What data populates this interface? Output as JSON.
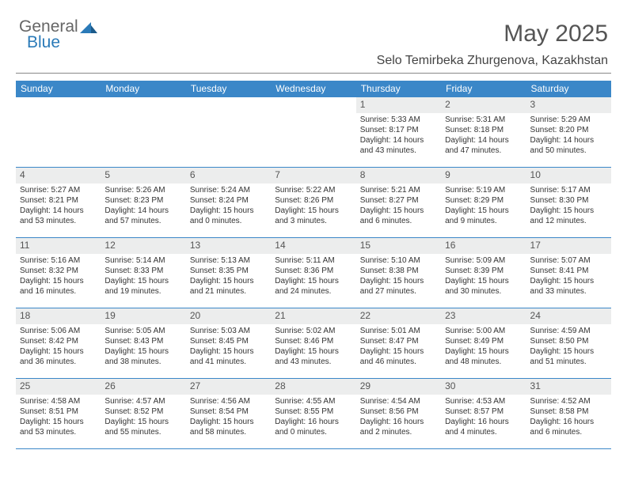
{
  "brand": {
    "part1": "General",
    "part2": "Blue"
  },
  "title": "May 2025",
  "location": "Selo Temirbeka Zhurgenova, Kazakhstan",
  "colors": {
    "header_bg": "#3b87c8",
    "header_text": "#ffffff",
    "daynum_bg": "#eceded",
    "text": "#333333",
    "divider": "#888888",
    "logo_gray": "#666666",
    "logo_blue": "#2a7ab8"
  },
  "day_headers": [
    "Sunday",
    "Monday",
    "Tuesday",
    "Wednesday",
    "Thursday",
    "Friday",
    "Saturday"
  ],
  "weeks": [
    [
      null,
      null,
      null,
      null,
      {
        "n": "1",
        "sr": "5:33 AM",
        "ss": "8:17 PM",
        "d1": "Daylight: 14 hours",
        "d2": "and 43 minutes."
      },
      {
        "n": "2",
        "sr": "5:31 AM",
        "ss": "8:18 PM",
        "d1": "Daylight: 14 hours",
        "d2": "and 47 minutes."
      },
      {
        "n": "3",
        "sr": "5:29 AM",
        "ss": "8:20 PM",
        "d1": "Daylight: 14 hours",
        "d2": "and 50 minutes."
      }
    ],
    [
      {
        "n": "4",
        "sr": "5:27 AM",
        "ss": "8:21 PM",
        "d1": "Daylight: 14 hours",
        "d2": "and 53 minutes."
      },
      {
        "n": "5",
        "sr": "5:26 AM",
        "ss": "8:23 PM",
        "d1": "Daylight: 14 hours",
        "d2": "and 57 minutes."
      },
      {
        "n": "6",
        "sr": "5:24 AM",
        "ss": "8:24 PM",
        "d1": "Daylight: 15 hours",
        "d2": "and 0 minutes."
      },
      {
        "n": "7",
        "sr": "5:22 AM",
        "ss": "8:26 PM",
        "d1": "Daylight: 15 hours",
        "d2": "and 3 minutes."
      },
      {
        "n": "8",
        "sr": "5:21 AM",
        "ss": "8:27 PM",
        "d1": "Daylight: 15 hours",
        "d2": "and 6 minutes."
      },
      {
        "n": "9",
        "sr": "5:19 AM",
        "ss": "8:29 PM",
        "d1": "Daylight: 15 hours",
        "d2": "and 9 minutes."
      },
      {
        "n": "10",
        "sr": "5:17 AM",
        "ss": "8:30 PM",
        "d1": "Daylight: 15 hours",
        "d2": "and 12 minutes."
      }
    ],
    [
      {
        "n": "11",
        "sr": "5:16 AM",
        "ss": "8:32 PM",
        "d1": "Daylight: 15 hours",
        "d2": "and 16 minutes."
      },
      {
        "n": "12",
        "sr": "5:14 AM",
        "ss": "8:33 PM",
        "d1": "Daylight: 15 hours",
        "d2": "and 19 minutes."
      },
      {
        "n": "13",
        "sr": "5:13 AM",
        "ss": "8:35 PM",
        "d1": "Daylight: 15 hours",
        "d2": "and 21 minutes."
      },
      {
        "n": "14",
        "sr": "5:11 AM",
        "ss": "8:36 PM",
        "d1": "Daylight: 15 hours",
        "d2": "and 24 minutes."
      },
      {
        "n": "15",
        "sr": "5:10 AM",
        "ss": "8:38 PM",
        "d1": "Daylight: 15 hours",
        "d2": "and 27 minutes."
      },
      {
        "n": "16",
        "sr": "5:09 AM",
        "ss": "8:39 PM",
        "d1": "Daylight: 15 hours",
        "d2": "and 30 minutes."
      },
      {
        "n": "17",
        "sr": "5:07 AM",
        "ss": "8:41 PM",
        "d1": "Daylight: 15 hours",
        "d2": "and 33 minutes."
      }
    ],
    [
      {
        "n": "18",
        "sr": "5:06 AM",
        "ss": "8:42 PM",
        "d1": "Daylight: 15 hours",
        "d2": "and 36 minutes."
      },
      {
        "n": "19",
        "sr": "5:05 AM",
        "ss": "8:43 PM",
        "d1": "Daylight: 15 hours",
        "d2": "and 38 minutes."
      },
      {
        "n": "20",
        "sr": "5:03 AM",
        "ss": "8:45 PM",
        "d1": "Daylight: 15 hours",
        "d2": "and 41 minutes."
      },
      {
        "n": "21",
        "sr": "5:02 AM",
        "ss": "8:46 PM",
        "d1": "Daylight: 15 hours",
        "d2": "and 43 minutes."
      },
      {
        "n": "22",
        "sr": "5:01 AM",
        "ss": "8:47 PM",
        "d1": "Daylight: 15 hours",
        "d2": "and 46 minutes."
      },
      {
        "n": "23",
        "sr": "5:00 AM",
        "ss": "8:49 PM",
        "d1": "Daylight: 15 hours",
        "d2": "and 48 minutes."
      },
      {
        "n": "24",
        "sr": "4:59 AM",
        "ss": "8:50 PM",
        "d1": "Daylight: 15 hours",
        "d2": "and 51 minutes."
      }
    ],
    [
      {
        "n": "25",
        "sr": "4:58 AM",
        "ss": "8:51 PM",
        "d1": "Daylight: 15 hours",
        "d2": "and 53 minutes."
      },
      {
        "n": "26",
        "sr": "4:57 AM",
        "ss": "8:52 PM",
        "d1": "Daylight: 15 hours",
        "d2": "and 55 minutes."
      },
      {
        "n": "27",
        "sr": "4:56 AM",
        "ss": "8:54 PM",
        "d1": "Daylight: 15 hours",
        "d2": "and 58 minutes."
      },
      {
        "n": "28",
        "sr": "4:55 AM",
        "ss": "8:55 PM",
        "d1": "Daylight: 16 hours",
        "d2": "and 0 minutes."
      },
      {
        "n": "29",
        "sr": "4:54 AM",
        "ss": "8:56 PM",
        "d1": "Daylight: 16 hours",
        "d2": "and 2 minutes."
      },
      {
        "n": "30",
        "sr": "4:53 AM",
        "ss": "8:57 PM",
        "d1": "Daylight: 16 hours",
        "d2": "and 4 minutes."
      },
      {
        "n": "31",
        "sr": "4:52 AM",
        "ss": "8:58 PM",
        "d1": "Daylight: 16 hours",
        "d2": "and 6 minutes."
      }
    ]
  ]
}
